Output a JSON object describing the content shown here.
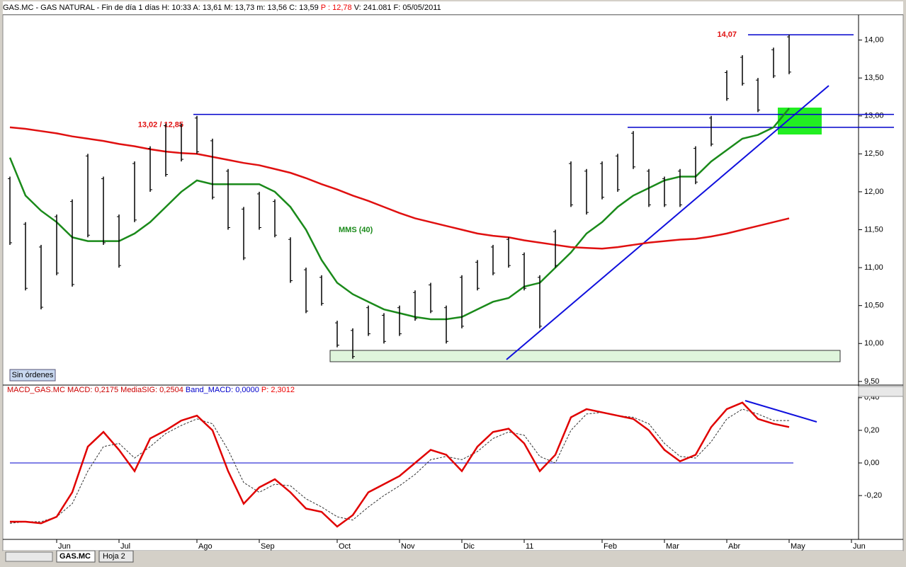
{
  "header": {
    "title_a": "GAS.MC - GAS NATURAL - Fin de día 1 días H: 10:33 A: 13,61 M: 13,73 m: 13,56 C: 13,59",
    "title_b": "P : 12,78",
    "title_c": "V: 241.081 F: 05/05/2011"
  },
  "macd_header": {
    "a": "MACD_GAS.MC MACD: 0,2175 MediaSIG: 0,2504",
    "b": "Band_MACD: 0,0000",
    "c": "P: 2,3012"
  },
  "button": "Sin órdenes",
  "tabs": [
    "GAS.MC",
    "Hoja 2"
  ],
  "chart_data": [
    {
      "type": "ohlc",
      "color": "#000000",
      "high": [
        12.2,
        11.6,
        11.3,
        11.7,
        11.9,
        12.5,
        12.2,
        11.7,
        12.4,
        12.6,
        12.9,
        12.9,
        13.0,
        12.7,
        12.3,
        11.8,
        12.0,
        11.9,
        11.4,
        11.0,
        10.9,
        10.3,
        10.2,
        10.5,
        10.4,
        10.5,
        10.7,
        10.8,
        10.5,
        10.9,
        11.1,
        11.3,
        11.4,
        11.2,
        10.9,
        11.5,
        12.4,
        12.3,
        12.4,
        12.5,
        12.8,
        12.3,
        12.2,
        12.3,
        12.6,
        13.0,
        13.6,
        13.8,
        13.5,
        13.9,
        14.07,
        null,
        null,
        null,
        null
      ],
      "low": [
        11.3,
        10.7,
        10.45,
        10.9,
        10.75,
        11.4,
        11.3,
        11.0,
        11.6,
        12.0,
        12.2,
        12.4,
        12.5,
        11.9,
        11.5,
        11.1,
        11.5,
        11.4,
        10.8,
        10.4,
        10.5,
        9.95,
        9.8,
        10.1,
        10.0,
        10.1,
        10.3,
        10.4,
        10.0,
        10.2,
        10.7,
        10.9,
        11.0,
        10.7,
        10.2,
        11.0,
        11.8,
        11.7,
        11.9,
        12.0,
        12.3,
        11.8,
        11.8,
        11.8,
        12.1,
        12.6,
        13.2,
        13.4,
        13.05,
        13.5,
        13.55,
        null,
        null,
        null,
        null
      ],
      "series": [
        {
          "name": "MMS (40)",
          "color": "#1a8a1a",
          "values": [
            12.45,
            11.95,
            11.75,
            11.6,
            11.4,
            11.35,
            11.35,
            11.35,
            11.45,
            11.6,
            11.8,
            12.0,
            12.15,
            12.1,
            12.1,
            12.1,
            12.1,
            12.0,
            11.8,
            11.5,
            11.1,
            10.8,
            10.65,
            10.55,
            10.45,
            10.4,
            10.35,
            10.32,
            10.32,
            10.35,
            10.45,
            10.55,
            10.6,
            10.75,
            10.8,
            11.0,
            11.2,
            11.45,
            11.6,
            11.8,
            11.95,
            12.05,
            12.15,
            12.2,
            12.2,
            12.4,
            12.55,
            12.7,
            12.75,
            12.85,
            13.1,
            null,
            null,
            null,
            null
          ]
        },
        {
          "color": "#e01010",
          "values": [
            12.85,
            12.83,
            12.8,
            12.77,
            12.73,
            12.7,
            12.67,
            12.63,
            12.6,
            12.56,
            12.53,
            12.51,
            12.5,
            12.46,
            12.42,
            12.38,
            12.35,
            12.3,
            12.25,
            12.18,
            12.1,
            12.03,
            11.95,
            11.88,
            11.8,
            11.72,
            11.65,
            11.6,
            11.55,
            11.5,
            11.45,
            11.42,
            11.4,
            11.36,
            11.33,
            11.3,
            11.27,
            11.26,
            11.25,
            11.27,
            11.3,
            11.33,
            11.35,
            11.37,
            11.38,
            11.41,
            11.45,
            11.5,
            11.55,
            11.6,
            11.65,
            null,
            null,
            null,
            null
          ]
        }
      ],
      "hlines": [
        {
          "value": 14.07,
          "label": "14,07",
          "color": "#0000cc"
        },
        {
          "value": 13.02,
          "label": "13,02 / 12,85",
          "color": "#0000cc"
        },
        {
          "value": 12.85,
          "color": "#0000cc"
        }
      ],
      "ylim": [
        9.48,
        14.36
      ],
      "yticks": [
        {
          "value": 14,
          "label": "14,00"
        },
        {
          "value": 13.5,
          "label": "13,50"
        },
        {
          "value": 13,
          "label": "13,00"
        },
        {
          "value": 12.5,
          "label": "12,50"
        },
        {
          "value": 12,
          "label": "12,00"
        },
        {
          "value": 11.5,
          "label": "11,50"
        },
        {
          "value": 11,
          "label": "11,00"
        },
        {
          "value": 10.5,
          "label": "10,50"
        },
        {
          "value": 10,
          "label": "10,00"
        },
        {
          "value": 9.5,
          "label": "9,50"
        }
      ]
    },
    {
      "type": "line",
      "categories": [
        null,
        null,
        null,
        "Jun",
        null,
        null,
        null,
        "Jul",
        null,
        null,
        null,
        null,
        "Ago",
        null,
        null,
        null,
        "Sep",
        null,
        null,
        null,
        null,
        "Oct",
        null,
        null,
        null,
        "Nov",
        null,
        null,
        null,
        "Dic",
        null,
        null,
        null,
        "11",
        null,
        null,
        null,
        null,
        "Feb",
        null,
        null,
        null,
        "Mar",
        null,
        null,
        null,
        "Abr",
        null,
        null,
        null,
        "May",
        null,
        null,
        null,
        "Jun"
      ],
      "series": [
        {
          "name": "MACD",
          "color": "#e00000",
          "values": [
            -0.36,
            -0.36,
            -0.37,
            -0.33,
            -0.18,
            0.1,
            0.19,
            0.08,
            -0.05,
            0.15,
            0.2,
            0.26,
            0.29,
            0.2,
            -0.05,
            -0.25,
            -0.15,
            -0.1,
            -0.18,
            -0.28,
            -0.3,
            -0.39,
            -0.32,
            -0.18,
            -0.13,
            -0.08,
            0.0,
            0.08,
            0.05,
            -0.05,
            0.1,
            0.19,
            0.21,
            0.12,
            -0.05,
            0.05,
            0.28,
            0.33,
            0.31,
            0.29,
            0.27,
            0.2,
            0.08,
            0.01,
            0.05,
            0.22,
            0.33,
            0.37,
            0.27,
            0.24,
            0.22,
            null,
            null,
            null,
            null
          ]
        },
        {
          "name": "MediaSIG",
          "color": "#333333",
          "dashed": true,
          "values": [
            -0.37,
            -0.36,
            -0.36,
            -0.33,
            -0.25,
            -0.05,
            0.1,
            0.12,
            0.03,
            0.1,
            0.18,
            0.23,
            0.27,
            0.24,
            0.08,
            -0.12,
            -0.18,
            -0.13,
            -0.14,
            -0.22,
            -0.27,
            -0.33,
            -0.35,
            -0.27,
            -0.2,
            -0.14,
            -0.07,
            0.02,
            0.04,
            0.02,
            0.07,
            0.15,
            0.19,
            0.17,
            0.04,
            0.0,
            0.2,
            0.3,
            0.31,
            0.29,
            0.28,
            0.24,
            0.12,
            0.04,
            0.03,
            0.13,
            0.27,
            0.33,
            0.3,
            0.26,
            0.26,
            null,
            null,
            null,
            null
          ]
        }
      ],
      "zero_color": "#0000cc",
      "ylim": [
        -0.46,
        0.46
      ],
      "yticks": [
        {
          "value": 0.4,
          "label": "0,40"
        },
        {
          "value": 0.2,
          "label": "0,20"
        },
        {
          "value": 0,
          "label": "0,00"
        },
        {
          "value": -0.2,
          "label": "-0,20"
        }
      ]
    }
  ]
}
